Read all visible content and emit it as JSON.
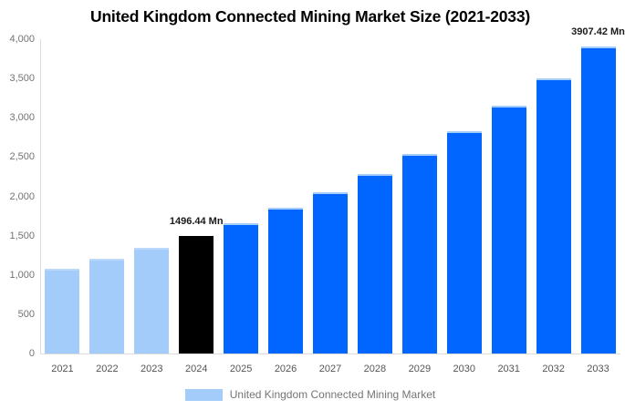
{
  "chart": {
    "title": "United Kingdom Connected Mining Market Size (2021-2033)",
    "legend": "United Kingdom Connected Mining Market"
  },
  "chart_data": {
    "type": "bar",
    "title": "United Kingdom Connected Mining Market Size (2021-2033)",
    "categories": [
      "2021",
      "2022",
      "2023",
      "2024",
      "2025",
      "2026",
      "2027",
      "2028",
      "2029",
      "2030",
      "2031",
      "2032",
      "2033"
    ],
    "values": [
      1080,
      1210,
      1345,
      1496.44,
      1655,
      1850,
      2055,
      2290,
      2540,
      2830,
      3150,
      3505,
      3907.42
    ],
    "segments": [
      "historical",
      "historical",
      "historical",
      "highlight",
      "forecast",
      "forecast",
      "forecast",
      "forecast",
      "forecast",
      "forecast",
      "forecast",
      "forecast",
      "forecast"
    ],
    "unit": "Mn",
    "xlabel": "",
    "ylabel": "",
    "ylim": [
      0,
      4000
    ],
    "grid": false,
    "legend_position": "bottom",
    "legend_label": "United Kingdom Connected Mining Market",
    "yticks": [
      {
        "value": 0,
        "label": "0"
      },
      {
        "value": 500,
        "label": "500"
      },
      {
        "value": 1000,
        "label": "1,000"
      },
      {
        "value": 1500,
        "label": "1,500"
      },
      {
        "value": 2000,
        "label": "2,000"
      },
      {
        "value": 2500,
        "label": "2,500"
      },
      {
        "value": 3000,
        "label": "3,000"
      },
      {
        "value": 3500,
        "label": "3,500"
      },
      {
        "value": 4000,
        "label": "4,000"
      }
    ],
    "annotations": [
      {
        "category": "2024",
        "text": "1496.44 Mn"
      },
      {
        "category": "2033",
        "text": "3907.42 Mn"
      }
    ]
  },
  "colors": {
    "title_text": "#000000",
    "axis_line": "#dcdcdc",
    "ytick_label": "#737373",
    "xtick_label": "#555555",
    "annotation_text": "#1a1a1a",
    "legend_text": "#757575",
    "bars": {
      "historical": {
        "fill": "#A3CCFA",
        "cap": "#BCD9FB"
      },
      "highlight": {
        "fill": "#000000",
        "cap": ""
      },
      "forecast": {
        "fill": "#0066FF",
        "cap": "#A6CDF9"
      }
    }
  }
}
